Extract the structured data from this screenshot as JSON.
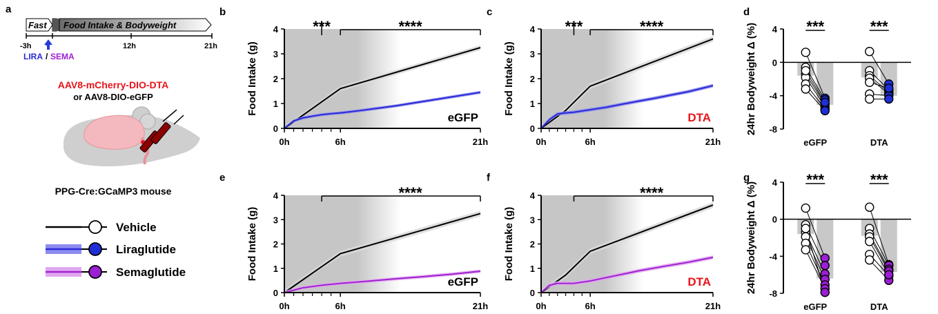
{
  "panel_labels": {
    "a": "a",
    "b": "b",
    "c": "c",
    "d": "d",
    "e": "e",
    "f": "f",
    "g": "g"
  },
  "colors": {
    "vehicle": "#000000",
    "liraglutide": "#2a2ad6",
    "liraglutide_band": "#8c8cef",
    "liraglutide_dot": "#1f2fd8",
    "semaglutide": "#a020d0",
    "semaglutide_band": "#e0a8f0",
    "semaglutide_dot": "#9b1fd4",
    "dta_red": "#e8131b",
    "shade": "#c6c6c6",
    "bar": "#c8c8c8"
  },
  "timeline": {
    "fast_label": "Fast",
    "intake_label": "Food Intake & Bodyweight",
    "ticks": [
      "-3h",
      "12h",
      "21h"
    ],
    "lira": "LIRA",
    "slash": "/",
    "sema": "SEMA"
  },
  "surgery": {
    "line1": "AAV8-mCherry-DIO-DTA",
    "line2": "or AAV8-DIO-eGFP",
    "mouse": "PPG-Cre:GCaMP3 mouse"
  },
  "legend": [
    {
      "name": "Vehicle",
      "key": "vehicle"
    },
    {
      "name": "Liraglutide",
      "key": "liraglutide"
    },
    {
      "name": "Semaglutide",
      "key": "semaglutide"
    }
  ],
  "food_axes": {
    "ylabel": "Food Intake (g)",
    "yticks": [
      "0",
      "1",
      "2",
      "3",
      "4"
    ],
    "xticks": [
      "0h",
      "6h",
      "21h"
    ]
  },
  "bw_axes": {
    "ylabel": "24hr Bodyweight Δ (%)",
    "yticks": [
      "4",
      "0",
      "-4",
      "-8"
    ],
    "categories": [
      "eGFP",
      "DTA"
    ]
  },
  "chart_data": [
    {
      "id": "b",
      "type": "line",
      "group_label": "eGFP",
      "group_color": "#000000",
      "ylabel": "Food Intake (g)",
      "xlim": [
        0,
        21
      ],
      "ylim": [
        0,
        4
      ],
      "sig": [
        {
          "text": "***",
          "x": 4
        },
        {
          "text": "****",
          "x": 13.5
        }
      ],
      "series": [
        {
          "name": "Vehicle",
          "color": "#000000",
          "x": [
            0,
            6,
            21
          ],
          "y": [
            0,
            1.6,
            3.25
          ],
          "band": 0.1
        },
        {
          "name": "Liraglutide",
          "color": "#2a2ad6",
          "x": [
            0,
            1,
            2,
            3,
            4,
            5,
            6,
            8,
            10,
            12,
            14,
            16,
            18,
            21
          ],
          "y": [
            0,
            0.3,
            0.42,
            0.49,
            0.55,
            0.59,
            0.62,
            0.71,
            0.81,
            0.91,
            1.03,
            1.15,
            1.27,
            1.45
          ],
          "band": 0.06
        }
      ]
    },
    {
      "id": "c",
      "type": "line",
      "group_label": "DTA",
      "group_color": "#e8131b",
      "ylabel": "Food Intake (g)",
      "xlim": [
        0,
        21
      ],
      "ylim": [
        0,
        4
      ],
      "sig": [
        {
          "text": "***",
          "x": 4
        },
        {
          "text": "****",
          "x": 13.5
        }
      ],
      "series": [
        {
          "name": "Vehicle",
          "color": "#000000",
          "x": [
            0,
            3,
            4,
            6,
            21
          ],
          "y": [
            0,
            0.72,
            1.05,
            1.7,
            3.6
          ],
          "band": 0.12
        },
        {
          "name": "Liraglutide",
          "color": "#2a2ad6",
          "x": [
            0,
            1,
            2,
            3,
            4,
            6,
            8,
            10,
            12,
            14,
            16,
            18,
            21
          ],
          "y": [
            0,
            0.35,
            0.58,
            0.62,
            0.65,
            0.75,
            0.85,
            0.98,
            1.1,
            1.22,
            1.35,
            1.48,
            1.72
          ],
          "band": 0.07
        }
      ]
    },
    {
      "id": "e",
      "type": "line",
      "group_label": "eGFP",
      "group_color": "#000000",
      "ylabel": "Food Intake (g)",
      "xlim": [
        0,
        21
      ],
      "ylim": [
        0,
        4
      ],
      "sig": [
        {
          "text": "****",
          "x": 13.5
        }
      ],
      "series": [
        {
          "name": "Vehicle",
          "color": "#000000",
          "x": [
            0,
            6,
            21
          ],
          "y": [
            0,
            1.6,
            3.25
          ],
          "band": 0.12
        },
        {
          "name": "Semaglutide",
          "color": "#a020d0",
          "x": [
            0,
            2,
            4,
            6,
            9,
            12,
            15,
            18,
            21
          ],
          "y": [
            0,
            0.2,
            0.3,
            0.38,
            0.47,
            0.57,
            0.66,
            0.76,
            0.88
          ],
          "band": 0.07
        }
      ]
    },
    {
      "id": "f",
      "type": "line",
      "group_label": "DTA",
      "group_color": "#e8131b",
      "ylabel": "Food Intake (g)",
      "xlim": [
        0,
        21
      ],
      "ylim": [
        0,
        4
      ],
      "sig": [
        {
          "text": "****",
          "x": 13.5
        }
      ],
      "series": [
        {
          "name": "Vehicle",
          "color": "#000000",
          "x": [
            0,
            3,
            4,
            6,
            21
          ],
          "y": [
            0,
            0.72,
            1.05,
            1.7,
            3.6
          ],
          "band": 0.12
        },
        {
          "name": "Semaglutide",
          "color": "#a020d0",
          "x": [
            0,
            1,
            2,
            4,
            6,
            8,
            10,
            12,
            15,
            18,
            21
          ],
          "y": [
            0,
            0.3,
            0.38,
            0.38,
            0.48,
            0.62,
            0.76,
            0.9,
            1.08,
            1.25,
            1.45
          ],
          "band": 0.08
        }
      ]
    },
    {
      "id": "d",
      "type": "bar",
      "categories": [
        "eGFP",
        "DTA"
      ],
      "ylabel": "24hr Bodyweight Δ (%)",
      "ylim": [
        -8,
        4
      ],
      "sig": [
        "***",
        "***"
      ],
      "drug_color": "#1f2fd8",
      "groups": [
        {
          "vehicle_mean": -1.6,
          "drug_mean": -5.1,
          "pairs": [
            [
              1.2,
              -4.3
            ],
            [
              -0.6,
              -4.5
            ],
            [
              -1.4,
              -5.0
            ],
            [
              -1.8,
              -5.3
            ],
            [
              -2.6,
              -5.6
            ],
            [
              -3.2,
              -5.8
            ],
            [
              -1.0,
              -4.8
            ]
          ]
        },
        {
          "vehicle_mean": -1.8,
          "drug_mean": -4.0,
          "pairs": [
            [
              1.3,
              -2.6
            ],
            [
              -1.0,
              -3.3
            ],
            [
              -1.6,
              -3.6
            ],
            [
              -1.9,
              -3.8
            ],
            [
              -3.8,
              -4.0
            ],
            [
              -4.4,
              -4.4
            ],
            [
              -2.4,
              -3.1
            ]
          ]
        }
      ]
    },
    {
      "id": "g",
      "type": "bar",
      "categories": [
        "eGFP",
        "DTA"
      ],
      "ylabel": "24hr Bodyweight Δ (%)",
      "ylim": [
        -8,
        4
      ],
      "sig": [
        "***",
        "***"
      ],
      "drug_color": "#9b1fd4",
      "groups": [
        {
          "vehicle_mean": -1.6,
          "drug_mean": -6.4,
          "pairs": [
            [
              1.2,
              -4.2
            ],
            [
              -0.6,
              -5.0
            ],
            [
              -1.4,
              -5.9
            ],
            [
              -1.9,
              -6.5
            ],
            [
              -2.6,
              -7.1
            ],
            [
              -3.3,
              -7.5
            ],
            [
              -1.0,
              -7.9
            ]
          ]
        },
        {
          "vehicle_mean": -1.8,
          "drug_mean": -5.7,
          "pairs": [
            [
              1.3,
              -4.9
            ],
            [
              -1.0,
              -5.0
            ],
            [
              -1.6,
              -5.4
            ],
            [
              -1.9,
              -5.6
            ],
            [
              -3.8,
              -6.1
            ],
            [
              -4.4,
              -6.6
            ],
            [
              -2.4,
              -6.0
            ]
          ]
        }
      ]
    }
  ]
}
